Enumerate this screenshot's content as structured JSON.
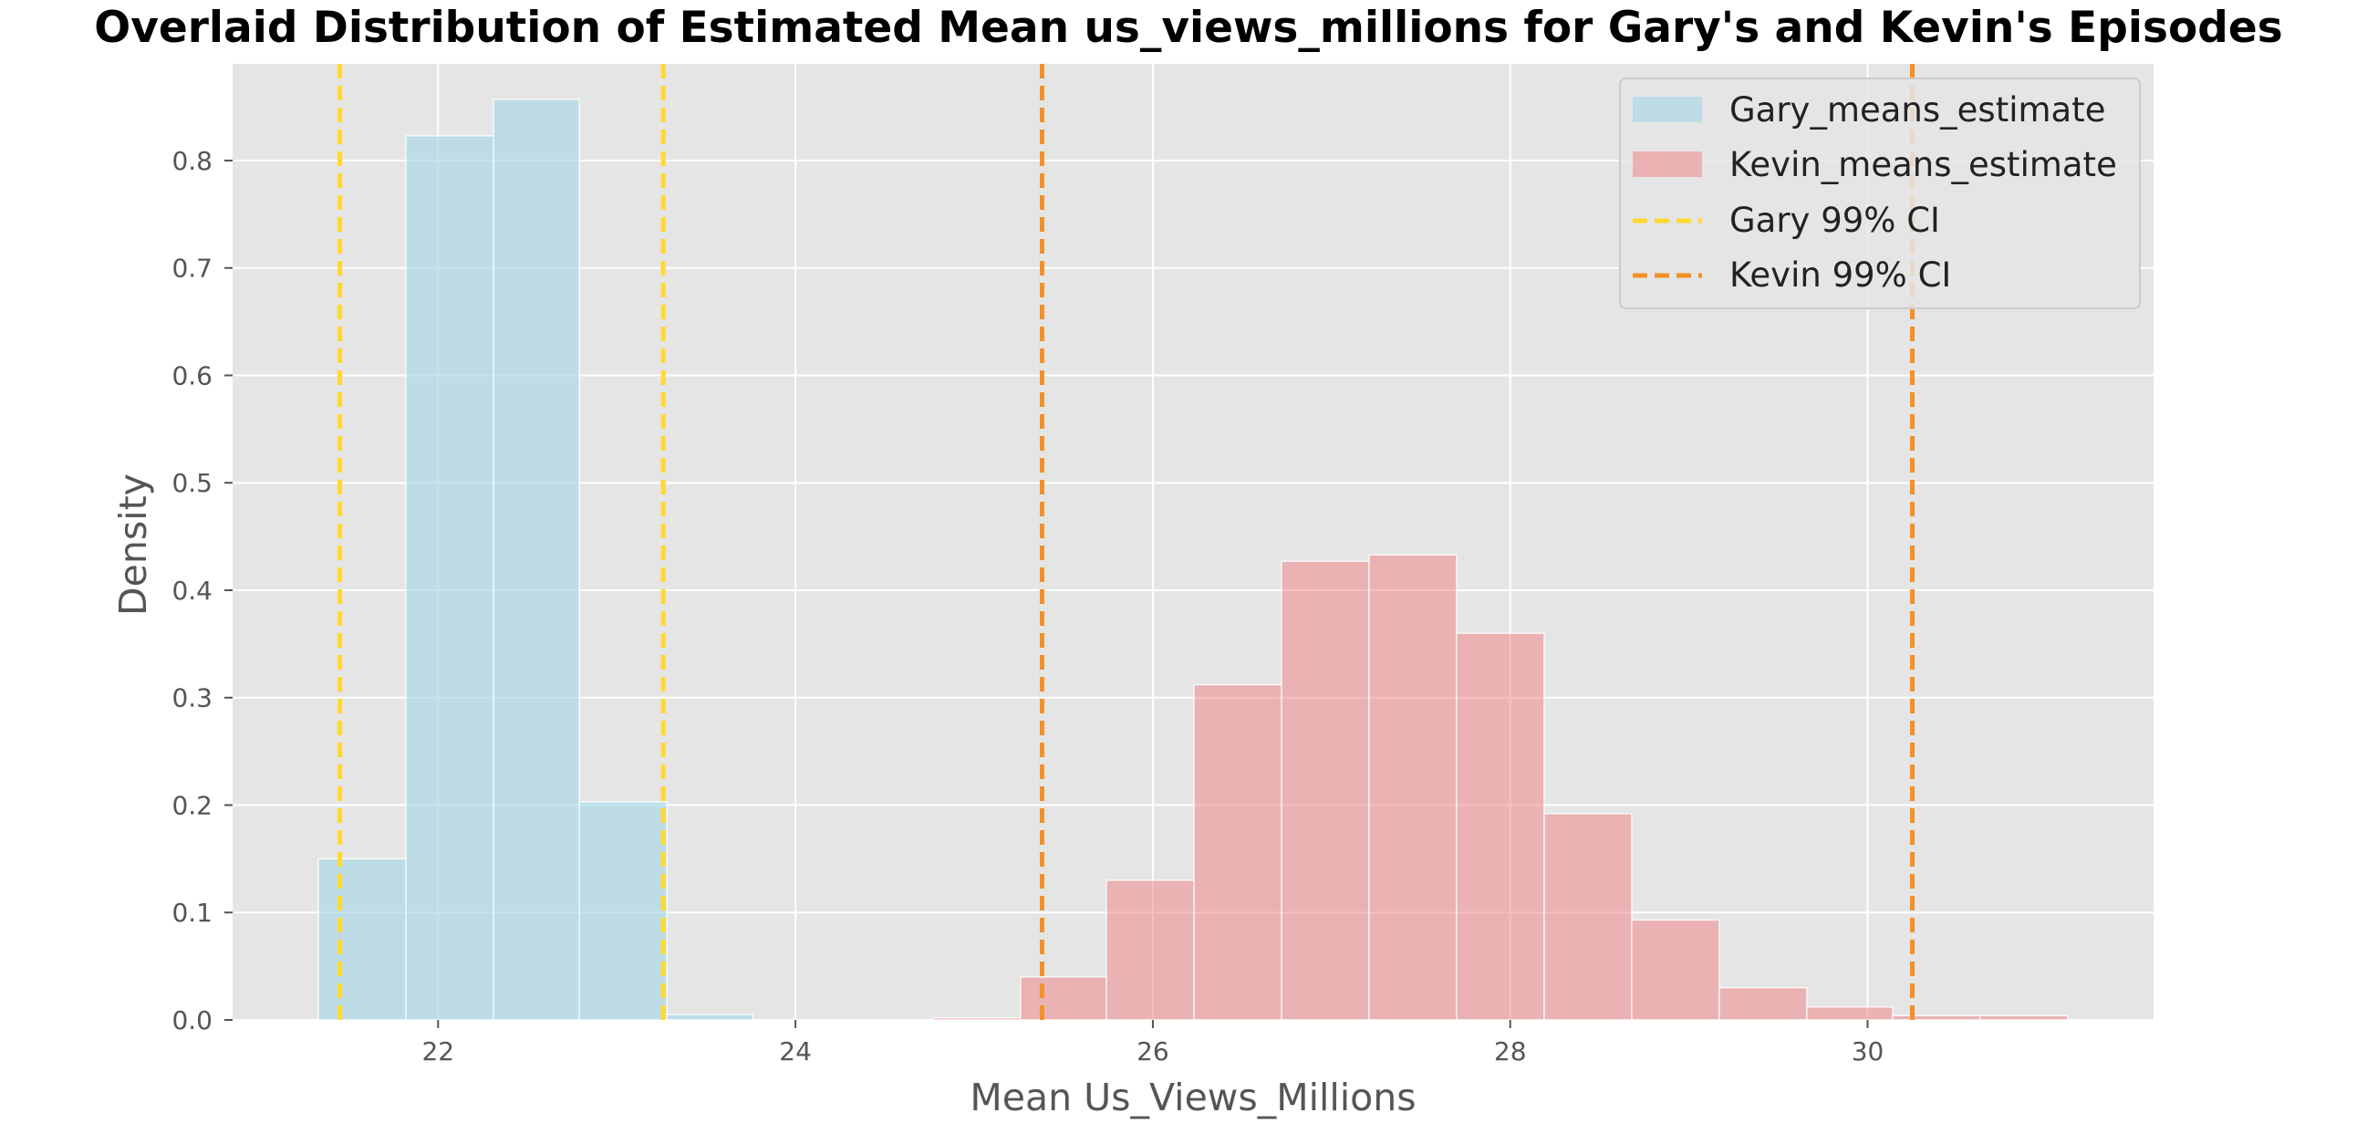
{
  "chart_data": {
    "type": "histogram",
    "title": "Overlaid Distribution of Estimated Mean us_views_millions for Gary's and Kevin's Episodes",
    "xlabel": "Mean Us_Views_Millions",
    "ylabel": "Density",
    "xlim": [
      20.85,
      31.6
    ],
    "ylim": [
      0,
      0.89
    ],
    "xticks": [
      22,
      24,
      26,
      28,
      30
    ],
    "yticks": [
      0.0,
      0.1,
      0.2,
      0.3,
      0.4,
      0.5,
      0.6,
      0.7,
      0.8
    ],
    "grid": true,
    "legend_position": "upper right",
    "series": [
      {
        "name": "Gary_means_estimate",
        "color": "#add8e6",
        "bins": [
          {
            "x0": 21.33,
            "x1": 21.82,
            "density": 0.15
          },
          {
            "x0": 21.82,
            "x1": 22.31,
            "density": 0.823
          },
          {
            "x0": 22.31,
            "x1": 22.79,
            "density": 0.857
          },
          {
            "x0": 22.79,
            "x1": 23.28,
            "density": 0.203
          },
          {
            "x0": 23.28,
            "x1": 23.76,
            "density": 0.005
          }
        ]
      },
      {
        "name": "Kevin_means_estimate",
        "color": "#f08080",
        "bins": [
          {
            "x0": 24.77,
            "x1": 25.26,
            "density": 0.002
          },
          {
            "x0": 25.26,
            "x1": 25.74,
            "density": 0.04
          },
          {
            "x0": 25.74,
            "x1": 26.23,
            "density": 0.13
          },
          {
            "x0": 26.23,
            "x1": 26.72,
            "density": 0.312
          },
          {
            "x0": 26.72,
            "x1": 27.21,
            "density": 0.427
          },
          {
            "x0": 27.21,
            "x1": 27.7,
            "density": 0.433
          },
          {
            "x0": 27.7,
            "x1": 28.19,
            "density": 0.36
          },
          {
            "x0": 28.19,
            "x1": 28.68,
            "density": 0.192
          },
          {
            "x0": 28.68,
            "x1": 29.17,
            "density": 0.093
          },
          {
            "x0": 29.17,
            "x1": 29.66,
            "density": 0.03
          },
          {
            "x0": 29.66,
            "x1": 30.14,
            "density": 0.012
          },
          {
            "x0": 30.14,
            "x1": 30.63,
            "density": 0.004
          },
          {
            "x0": 30.63,
            "x1": 31.12,
            "density": 0.004
          }
        ]
      }
    ],
    "vlines": [
      {
        "name": "Gary 99% CI",
        "color": "#ffd92f",
        "x": [
          21.45,
          23.26
        ]
      },
      {
        "name": "Kevin 99% CI",
        "color": "#f39026",
        "x": [
          25.38,
          30.25
        ]
      }
    ]
  }
}
